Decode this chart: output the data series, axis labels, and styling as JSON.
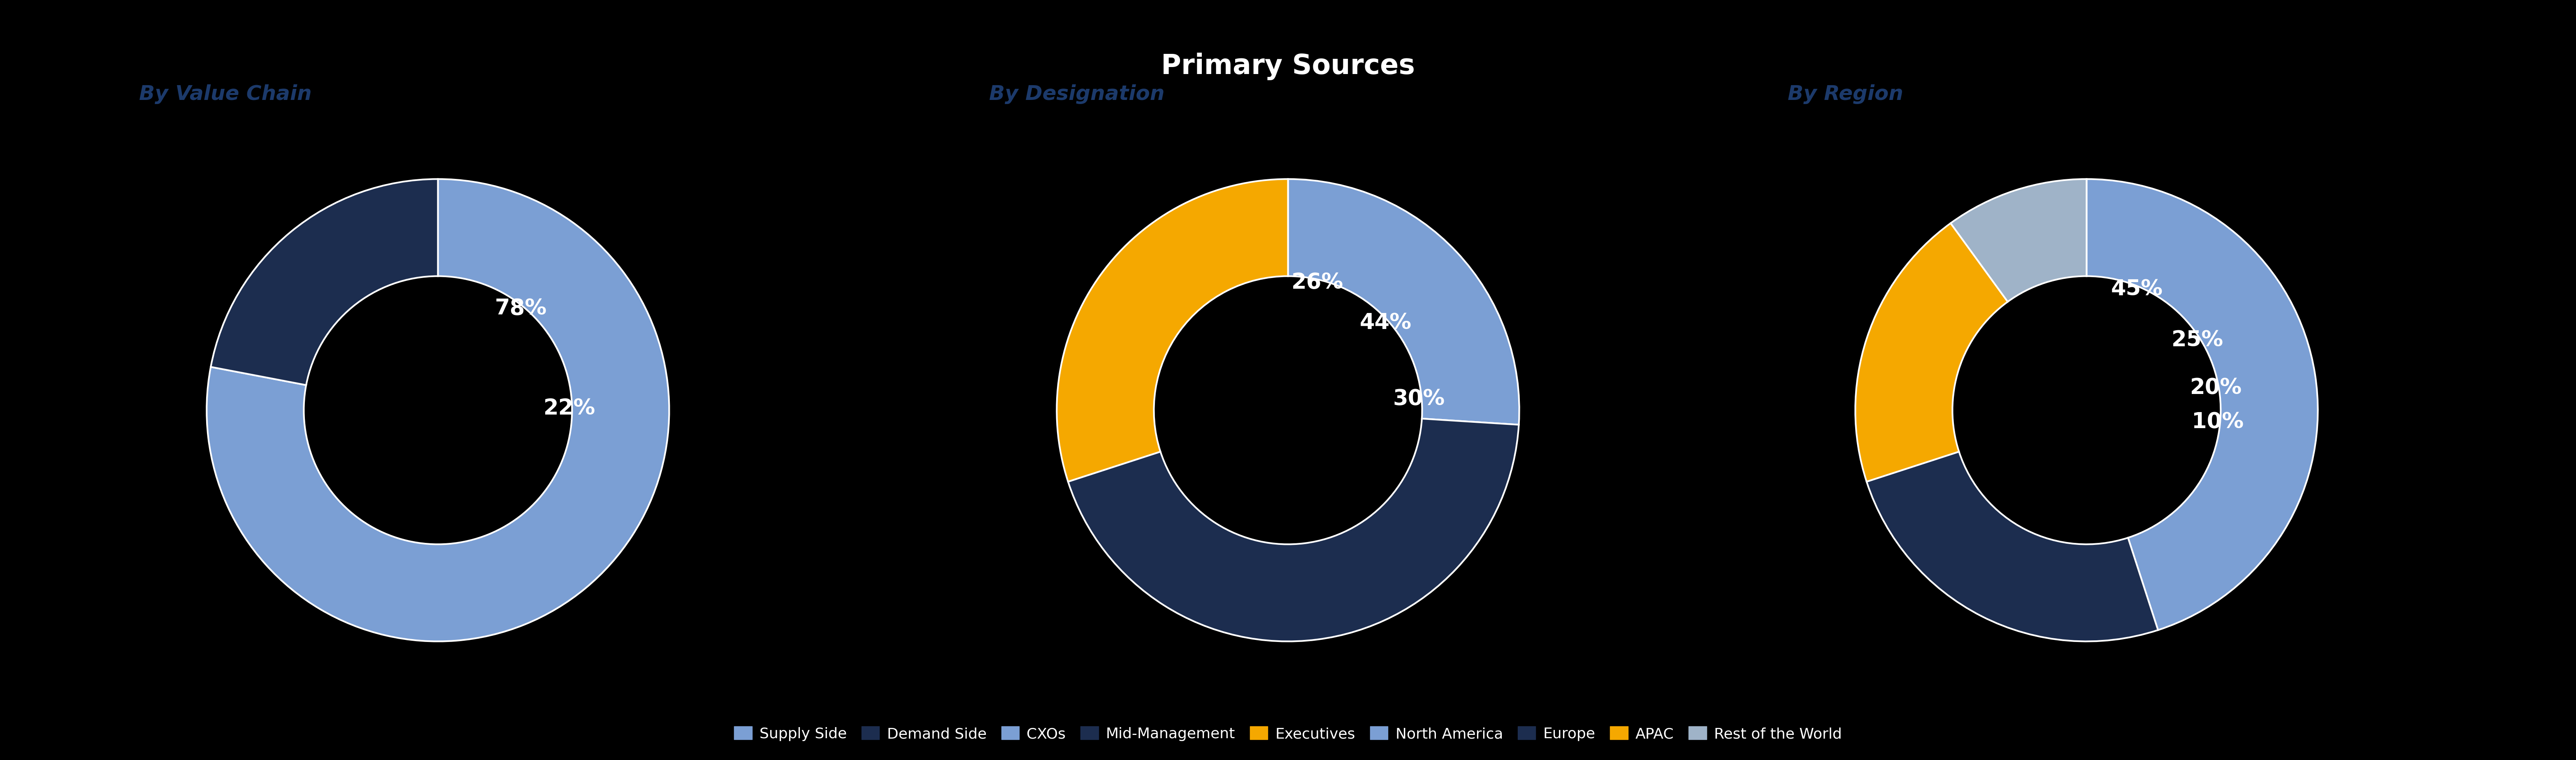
{
  "title": "Primary Sources",
  "title_bg_color": "#1e9e3e",
  "title_text_color": "#ffffff",
  "background_color": "#000000",
  "chart1_title": "By Value Chain",
  "chart1_values": [
    78,
    22
  ],
  "chart1_labels": [
    "78%",
    "22%"
  ],
  "chart1_colors": [
    "#7b9fd4",
    "#1c2d4f"
  ],
  "chart1_legend": [
    "Supply Side",
    "Demand Side"
  ],
  "chart2_title": "By Designation",
  "chart2_values": [
    26,
    44,
    30
  ],
  "chart2_labels": [
    "26%",
    "44%",
    "30%"
  ],
  "chart2_colors": [
    "#7b9fd4",
    "#1c2d4f",
    "#f5a800"
  ],
  "chart2_legend": [
    "CXOs",
    "Mid-Management",
    "Executives"
  ],
  "chart3_title": "By Region",
  "chart3_values": [
    45,
    25,
    20,
    10
  ],
  "chart3_labels": [
    "45%",
    "25%",
    "20%",
    "10%"
  ],
  "chart3_colors": [
    "#7b9fd4",
    "#1c2d4f",
    "#f5a800",
    "#9fb3c8"
  ],
  "chart3_legend": [
    "North America",
    "Europe",
    "APAC",
    "Rest of the World"
  ],
  "donut_width": 0.42,
  "label_fontsize": 38,
  "title_fontsize": 48,
  "subtitle_fontsize": 36,
  "legend_fontsize": 26
}
